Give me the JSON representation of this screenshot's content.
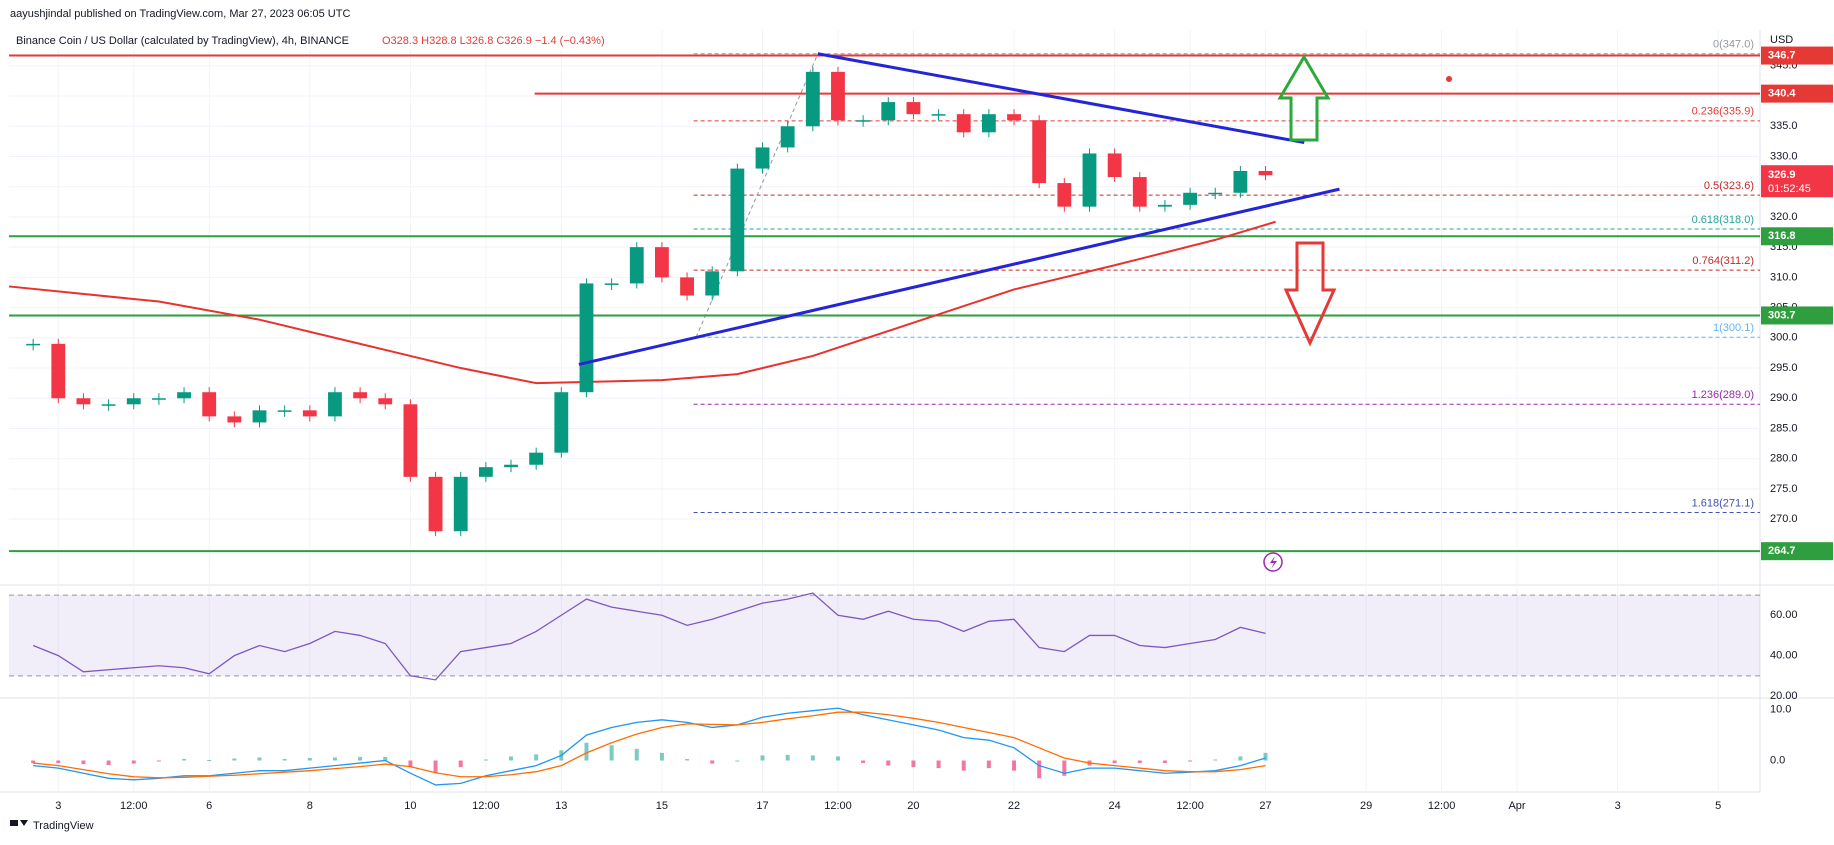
{
  "chart_data": {
    "type": "candlestick",
    "byline": "aayushjindal published on TradingView.com, Mar 27, 2023 06:05 UTC",
    "title": "Binance Coin / US Dollar (calculated by TradingView), 4h, BINANCE",
    "ohlc": "O328.3 H328.8 L326.8 C326.9 −1.4 (−0.43%)",
    "currency": "USD",
    "brand": "TradingView",
    "x": [
      2.5,
      3,
      3.5,
      4,
      4.5,
      5,
      5.5,
      6,
      6.5,
      7,
      7.5,
      8,
      8.5,
      9,
      9.5,
      10,
      10.5,
      11,
      11.5,
      12,
      12.5,
      13,
      13.5,
      14,
      14.5,
      15,
      15.5,
      16,
      16.5,
      17,
      17.5,
      18,
      18.5,
      19,
      19.5,
      20,
      20.5,
      21,
      21.5,
      22,
      22.5,
      23,
      23.5,
      24,
      24.5,
      25,
      25.5,
      26,
      26.5,
      27
    ],
    "values": [
      299,
      290,
      289,
      289,
      290,
      290,
      291,
      287,
      286,
      288,
      288,
      287,
      291,
      290,
      289,
      277,
      268,
      277,
      278.6,
      279,
      281,
      291,
      309,
      309,
      315,
      310,
      307,
      311,
      328,
      331.5,
      335,
      344,
      336,
      336,
      339,
      337,
      337,
      334,
      337,
      336,
      325.6,
      321.7,
      330.5,
      326.6,
      321.7,
      322,
      324,
      324,
      327.6,
      326.9
    ],
    "up_color": "#089981",
    "down_color": "#f23645",
    "xlim": [
      2.02,
      36.83
    ],
    "xticks": [
      3,
      {
        "value": 4.5,
        "label": "12:00"
      },
      6,
      8,
      10,
      {
        "value": 11.5,
        "label": "12:00"
      },
      13,
      15,
      17,
      {
        "value": 18.5,
        "label": "12:00"
      },
      20,
      22,
      24,
      {
        "value": 25.5,
        "label": "12:00"
      },
      27,
      29,
      {
        "value": 30.5,
        "label": "12:00"
      },
      {
        "value": 32,
        "label": "Apr"
      },
      {
        "value": 34,
        "label": "3"
      },
      {
        "value": 36,
        "label": "5"
      }
    ],
    "ylim": [
      259.6,
      350.1
    ],
    "yticks": [
      {
        "value": 270,
        "label": "270.0"
      },
      {
        "value": 275,
        "label": "275.0"
      },
      {
        "value": 280,
        "label": "280.0"
      },
      {
        "value": 285,
        "label": "285.0"
      },
      {
        "value": 290,
        "label": "290.0"
      },
      {
        "value": 295,
        "label": "295.0"
      },
      {
        "value": 300,
        "label": "300.0"
      },
      {
        "value": 305,
        "label": "305.0"
      },
      {
        "value": 310,
        "label": "310.0"
      },
      {
        "value": 315,
        "label": "315.0"
      },
      {
        "value": 320,
        "label": "320.0"
      },
      {
        "value": 325,
        "label": "325.0"
      },
      {
        "value": 330,
        "label": "330.0"
      },
      {
        "value": 335,
        "label": "335.0"
      },
      {
        "value": 340,
        "label": "340.0"
      },
      {
        "value": 345,
        "label": "345.0"
      }
    ],
    "grid": true,
    "levels": [
      {
        "value": 346.7,
        "color": "#e53935"
      },
      {
        "value": 340.4,
        "color": "#e53935",
        "from": 12.47
      },
      {
        "value": 316.8,
        "color": "#2e9e3f"
      },
      {
        "value": 303.7,
        "color": "#2e9e3f"
      },
      {
        "value": 264.7,
        "color": "#2e9e3f"
      }
    ],
    "fib_from": 15.63,
    "fib": [
      {
        "label": "0(347.0)",
        "value": 347.0,
        "color": "#9598a1"
      },
      {
        "label": "0.236(335.9)",
        "value": 335.9,
        "color": "#e53935"
      },
      {
        "label": "0.5(323.6)",
        "value": 323.6,
        "color": "#c62828"
      },
      {
        "label": "0.618(318.0)",
        "value": 318.0,
        "color": "#26a69a"
      },
      {
        "label": "0.764(311.2)",
        "value": 311.2,
        "color": "#c62828"
      },
      {
        "label": "1(300.1)",
        "value": 300.1,
        "color": "#64b5f6"
      },
      {
        "label": "1.236(289.0)",
        "value": 289.0,
        "color": "#9c27b0"
      },
      {
        "label": "1.618(271.1)",
        "value": 271.1,
        "color": "#3f51b5"
      }
    ],
    "fib_anchor": {
      "x": [
        15.68,
        18.1
      ],
      "values": [
        300.1,
        347.0
      ]
    },
    "trendlines": [
      {
        "x": [
          18.1,
          27.77
        ],
        "values": [
          347.0,
          332.3
        ],
        "color": "#2424d8"
      },
      {
        "x": [
          13.35,
          28.47
        ],
        "values": [
          295.6,
          324.6
        ],
        "color": "#2424d8"
      }
    ],
    "ma": {
      "color": "#e8322d",
      "x": [
        2.02,
        5,
        7,
        9,
        11,
        12.5,
        15,
        16.5,
        18,
        20,
        22,
        24,
        26,
        27.2
      ],
      "values": [
        308.5,
        306,
        303,
        299,
        295,
        292.5,
        293,
        294,
        297,
        302.5,
        308,
        312,
        316.2,
        319.2
      ]
    },
    "last_price": 326.9,
    "countdown": "01:52:45",
    "rsi": {
      "color": "#7e57c2",
      "ylim": [
        20,
        73.5
      ],
      "yticks": [
        {
          "value": 20,
          "label": "20.00"
        },
        {
          "value": 40,
          "label": "40.00"
        },
        {
          "value": 60,
          "label": "60.00"
        }
      ],
      "bands": [
        70,
        30
      ],
      "values": [
        45,
        40,
        32,
        33,
        34,
        35,
        34,
        31,
        40,
        45,
        42,
        46,
        52,
        50,
        46,
        30,
        28,
        42,
        44,
        46,
        52,
        60,
        68,
        64,
        62,
        60,
        55,
        58,
        62,
        66,
        68,
        71,
        60,
        58,
        62,
        58,
        57,
        52,
        57,
        58,
        44,
        42,
        50,
        50,
        45,
        44,
        46,
        48,
        54,
        51
      ]
    },
    "macd": {
      "ylim": [
        -5.8,
        11.9
      ],
      "yticks": [
        {
          "value": 0,
          "label": "0.0"
        },
        {
          "value": 10,
          "label": "10.0"
        }
      ],
      "macd_color": "#2196f3",
      "signal_color": "#ff6d00",
      "hist_up": "#26a69a",
      "hist_down": "#e91e63",
      "macd": [
        -1,
        -1.5,
        -2.5,
        -3.5,
        -3.8,
        -3.5,
        -3,
        -3,
        -2.5,
        -2,
        -2,
        -1.5,
        -1,
        -0.5,
        0,
        -2.5,
        -4.8,
        -4.5,
        -3,
        -2,
        -1,
        1,
        5,
        6.5,
        7.5,
        8,
        7.5,
        6.5,
        7,
        8.5,
        9.3,
        9.8,
        10.3,
        9,
        8,
        7,
        6,
        4.5,
        4,
        2.5,
        -1,
        -2.5,
        -1.5,
        -1.5,
        -2,
        -2.5,
        -2.3,
        -2,
        -1,
        0.5
      ],
      "signal": [
        -0.5,
        -1,
        -1.8,
        -2.6,
        -3.2,
        -3.4,
        -3.3,
        -3.1,
        -2.9,
        -2.6,
        -2.3,
        -2,
        -1.6,
        -1.2,
        -0.7,
        -1.2,
        -2.4,
        -3.2,
        -3.2,
        -2.8,
        -2.2,
        -1,
        1.5,
        3.5,
        5.2,
        6.5,
        7.2,
        7.1,
        7,
        7.5,
        8.2,
        8.8,
        9.5,
        9.5,
        9,
        8.3,
        7.5,
        6.5,
        5.5,
        4.5,
        2.5,
        0.5,
        -0.5,
        -1,
        -1.5,
        -2,
        -2.2,
        -2.2,
        -1.8,
        -1
      ],
      "histogram": [
        -0.5,
        -0.5,
        -0.7,
        -0.9,
        -0.6,
        -0.1,
        0.3,
        0.1,
        0.4,
        0.6,
        0.3,
        0.5,
        0.6,
        0.7,
        0.7,
        -1.3,
        -2.4,
        -1.3,
        0.2,
        0.8,
        1.2,
        2,
        3.5,
        3,
        2.3,
        1.5,
        0.3,
        -0.6,
        0,
        1,
        1.1,
        1,
        0.8,
        -0.5,
        -1,
        -1.3,
        -1.5,
        -2,
        -1.5,
        -2,
        -3.5,
        -3,
        -1,
        -0.5,
        -0.5,
        -0.5,
        -0.1,
        0.2,
        0.8,
        1.5
      ]
    }
  }
}
